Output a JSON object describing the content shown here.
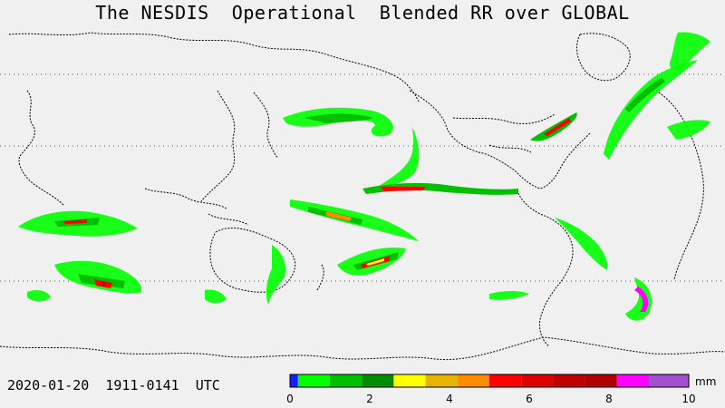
{
  "title": "The NESDIS  Operational  Blended RR over GLOBAL",
  "timestamp": "2020-01-20  1911-0141  UTC",
  "legend": {
    "unit": "mm",
    "tick_labels": [
      "0",
      "2",
      "4",
      "6",
      "8",
      "10"
    ],
    "bins": [
      {
        "value_min": 0.0,
        "value_max": 0.2,
        "color": "#1020ff"
      },
      {
        "value_min": 0.2,
        "value_max": 1.0,
        "color": "#00ff00"
      },
      {
        "value_min": 1.0,
        "value_max": 1.8,
        "color": "#00c000"
      },
      {
        "value_min": 1.8,
        "value_max": 2.6,
        "color": "#008c00"
      },
      {
        "value_min": 2.6,
        "value_max": 3.4,
        "color": "#ffff00"
      },
      {
        "value_min": 3.4,
        "value_max": 4.2,
        "color": "#e6b400"
      },
      {
        "value_min": 4.2,
        "value_max": 5.0,
        "color": "#ff8c00"
      },
      {
        "value_min": 5.0,
        "value_max": 5.8,
        "color": "#ff0000"
      },
      {
        "value_min": 5.8,
        "value_max": 6.6,
        "color": "#dc0000"
      },
      {
        "value_min": 6.6,
        "value_max": 7.4,
        "color": "#c00000"
      },
      {
        "value_min": 7.4,
        "value_max": 8.2,
        "color": "#b00000"
      },
      {
        "value_min": 8.2,
        "value_max": 9.0,
        "color": "#ff00ff"
      },
      {
        "value_min": 9.0,
        "value_max": 10.0,
        "color": "#a050d0"
      }
    ]
  },
  "map": {
    "background_color": "#f0f0f0",
    "coastline_color": "#000000",
    "gridline_style": "dotted",
    "rain_colors": {
      "light": "#00ff00",
      "moderate": "#00c000",
      "heavy": "#008c00",
      "intense": "#ff0000",
      "extreme": "#c00000",
      "peak": "#ffff00"
    }
  }
}
